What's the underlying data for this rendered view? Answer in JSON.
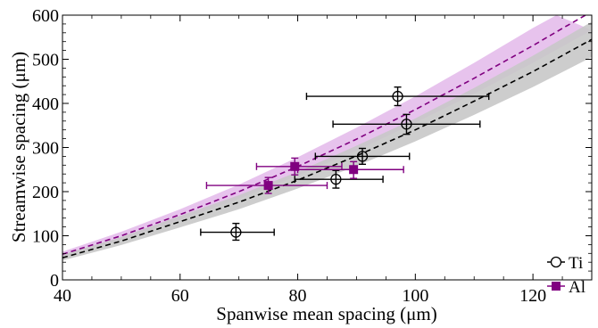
{
  "chart_data": {
    "type": "scatter",
    "title": "",
    "xlabel": "Spanwise mean spacing (μm)",
    "ylabel": "Streamwise spacing (μm)",
    "xlim": [
      40,
      130
    ],
    "ylim": [
      0,
      600
    ],
    "xticks": [
      40,
      60,
      80,
      100,
      120
    ],
    "yticks": [
      0,
      100,
      200,
      300,
      400,
      500,
      600
    ],
    "legend_position": "bottom-right",
    "grid": false,
    "colors": {
      "Ti": "#000000",
      "Al": "#800080",
      "Ti_band": "#c8c8c8",
      "Al_band": "#e3b8ea"
    },
    "series": [
      {
        "name": "Ti",
        "marker": "open-circle",
        "points": [
          {
            "x": 69.5,
            "y": 108,
            "xerr": [
              63.5,
              76
            ],
            "yerr": [
              90,
              128
            ]
          },
          {
            "x": 86.5,
            "y": 228,
            "xerr": [
              79.5,
              94.5
            ],
            "yerr": [
              208,
              248
            ]
          },
          {
            "x": 91,
            "y": 280,
            "xerr": [
              83,
              99
            ],
            "yerr": [
              262,
              298
            ]
          },
          {
            "x": 97,
            "y": 416,
            "xerr": [
              81.5,
              112.5
            ],
            "yerr": [
              395,
              437
            ]
          },
          {
            "x": 98.5,
            "y": 353,
            "xerr": [
              86,
              111
            ],
            "yerr": [
              330,
              375
            ]
          }
        ],
        "fit_curve": [
          {
            "x": 40,
            "y": 50
          },
          {
            "x": 50,
            "y": 88
          },
          {
            "x": 60,
            "y": 132
          },
          {
            "x": 70,
            "y": 176
          },
          {
            "x": 80,
            "y": 226
          },
          {
            "x": 90,
            "y": 281
          },
          {
            "x": 100,
            "y": 340
          },
          {
            "x": 110,
            "y": 405
          },
          {
            "x": 120,
            "y": 472
          },
          {
            "x": 130,
            "y": 545
          }
        ],
        "band_upper": [
          {
            "x": 40,
            "y": 57
          },
          {
            "x": 50,
            "y": 97
          },
          {
            "x": 60,
            "y": 145
          },
          {
            "x": 70,
            "y": 192
          },
          {
            "x": 80,
            "y": 245
          },
          {
            "x": 90,
            "y": 304
          },
          {
            "x": 100,
            "y": 366
          },
          {
            "x": 110,
            "y": 435
          },
          {
            "x": 120,
            "y": 508
          },
          {
            "x": 130,
            "y": 585
          }
        ],
        "band_lower": [
          {
            "x": 40,
            "y": 44
          },
          {
            "x": 50,
            "y": 79
          },
          {
            "x": 60,
            "y": 119
          },
          {
            "x": 70,
            "y": 160
          },
          {
            "x": 80,
            "y": 207
          },
          {
            "x": 90,
            "y": 258
          },
          {
            "x": 100,
            "y": 314
          },
          {
            "x": 110,
            "y": 374
          },
          {
            "x": 120,
            "y": 437
          },
          {
            "x": 130,
            "y": 505
          }
        ]
      },
      {
        "name": "Al",
        "marker": "filled-square",
        "points": [
          {
            "x": 75,
            "y": 214,
            "xerr": [
              64.5,
              85
            ],
            "yerr": [
              196,
              232
            ]
          },
          {
            "x": 79.5,
            "y": 257,
            "xerr": [
              73,
              87.5
            ],
            "yerr": [
              238,
              276
            ]
          },
          {
            "x": 89.5,
            "y": 250,
            "xerr": [
              80,
              98
            ],
            "yerr": [
              230,
              268
            ]
          }
        ],
        "fit_curve": [
          {
            "x": 40,
            "y": 58
          },
          {
            "x": 50,
            "y": 100
          },
          {
            "x": 60,
            "y": 148
          },
          {
            "x": 70,
            "y": 200
          },
          {
            "x": 80,
            "y": 257
          },
          {
            "x": 90,
            "y": 319
          },
          {
            "x": 100,
            "y": 386
          },
          {
            "x": 110,
            "y": 457
          },
          {
            "x": 120,
            "y": 531
          },
          {
            "x": 125,
            "y": 570
          },
          {
            "x": 130,
            "y": 608
          }
        ],
        "band_upper": [
          {
            "x": 40,
            "y": 64
          },
          {
            "x": 50,
            "y": 109
          },
          {
            "x": 60,
            "y": 160
          },
          {
            "x": 70,
            "y": 216
          },
          {
            "x": 80,
            "y": 278
          },
          {
            "x": 90,
            "y": 345
          },
          {
            "x": 100,
            "y": 416
          },
          {
            "x": 110,
            "y": 492
          },
          {
            "x": 120,
            "y": 571
          },
          {
            "x": 124,
            "y": 600
          }
        ],
        "band_lower": [
          {
            "x": 40,
            "y": 52
          },
          {
            "x": 50,
            "y": 91
          },
          {
            "x": 60,
            "y": 136
          },
          {
            "x": 70,
            "y": 184
          },
          {
            "x": 80,
            "y": 236
          },
          {
            "x": 90,
            "y": 293
          },
          {
            "x": 100,
            "y": 356
          },
          {
            "x": 110,
            "y": 422
          },
          {
            "x": 120,
            "y": 492
          },
          {
            "x": 130,
            "y": 566
          }
        ]
      }
    ]
  }
}
